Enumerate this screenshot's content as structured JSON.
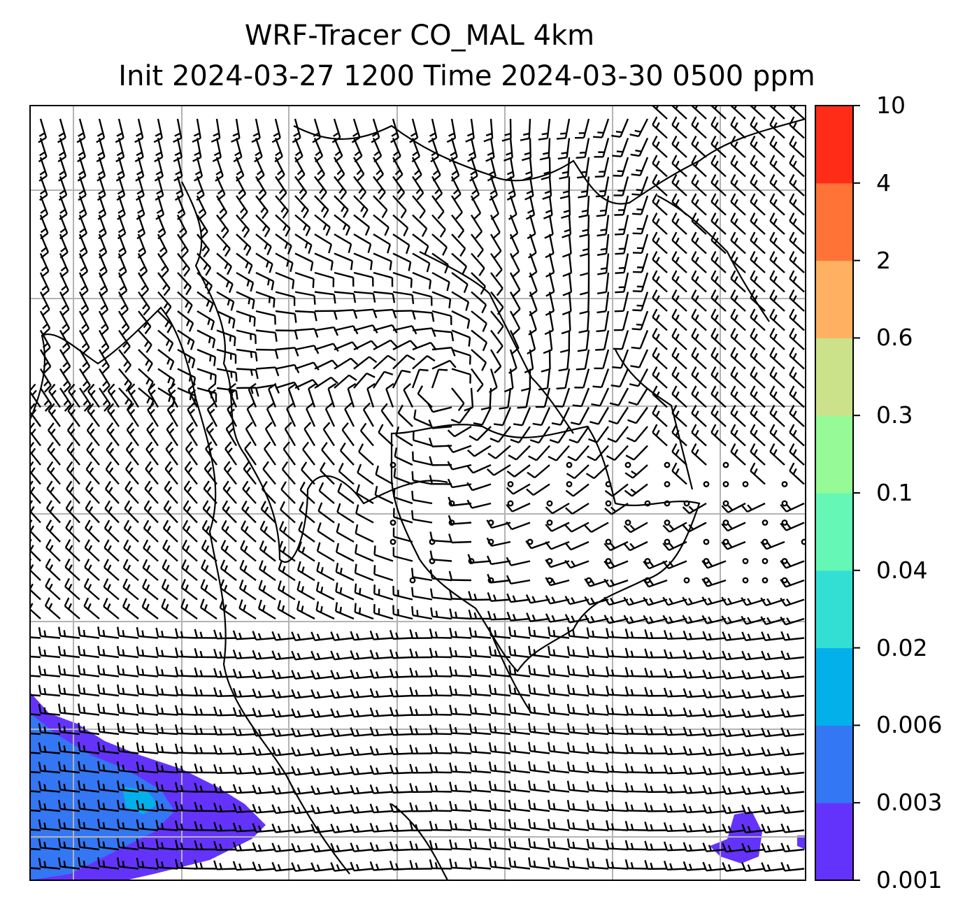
{
  "title": {
    "line1": "WRF-Tracer CO_MAL 4km",
    "line2": "Init 2024-03-27 1200 Time 2024-03-30 0500 ppm"
  },
  "colorbar": {
    "levels": [
      "0.001",
      "0.003",
      "0.006",
      "0.02",
      "0.04",
      "0.1",
      "0.3",
      "0.6",
      "2",
      "4",
      "10"
    ],
    "colors": [
      "#6433fb",
      "#3377f4",
      "#03b0e9",
      "#33dfd3",
      "#64f7b5",
      "#96fa96",
      "#cce28a",
      "#ffb061",
      "#ff7436",
      "#ff2d17"
    ]
  },
  "map": {
    "fill_colors": {
      "level1": "#6433fb",
      "level2": "#3377f4",
      "level3": "#03b0e9"
    },
    "gridline_color": "#b3b3b3",
    "coastline_color": "#000000",
    "field": "wind barbs + CO tracer concentration"
  }
}
